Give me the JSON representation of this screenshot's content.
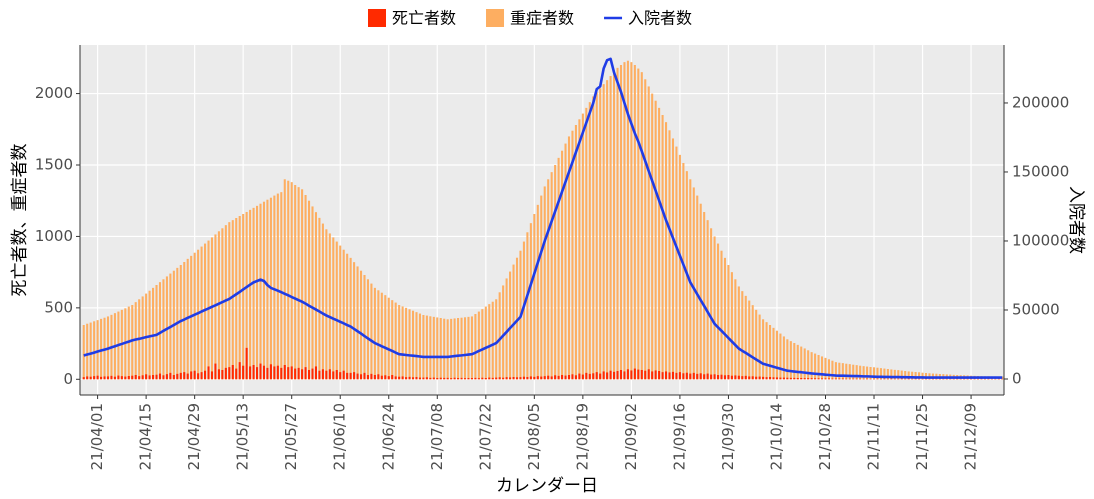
{
  "chart_data": {
    "type": "combo",
    "x_label": "カレンダー日",
    "y_label": "死亡者数、重症者数",
    "y2_label": "入院者数",
    "categories": [
      null,
      null,
      null,
      null,
      "21/04/01",
      null,
      null,
      null,
      null,
      null,
      null,
      null,
      null,
      null,
      null,
      null,
      null,
      null,
      "21/04/15",
      null,
      null,
      null,
      null,
      null,
      null,
      null,
      null,
      null,
      null,
      null,
      null,
      null,
      "21/04/29",
      null,
      null,
      null,
      null,
      null,
      null,
      null,
      null,
      null,
      null,
      null,
      null,
      null,
      "21/05/13",
      null,
      null,
      null,
      null,
      null,
      null,
      null,
      null,
      null,
      null,
      null,
      null,
      null,
      "21/05/27",
      null,
      null,
      null,
      null,
      null,
      null,
      null,
      null,
      null,
      null,
      null,
      null,
      null,
      "21/06/10",
      null,
      null,
      null,
      null,
      null,
      null,
      null,
      null,
      null,
      null,
      null,
      null,
      null,
      "21/06/24",
      null,
      null,
      null,
      null,
      null,
      null,
      null,
      null,
      null,
      null,
      null,
      null,
      null,
      "21/07/08",
      null,
      null,
      null,
      null,
      null,
      null,
      null,
      null,
      null,
      null,
      null,
      null,
      null,
      "21/07/22",
      null,
      null,
      null,
      null,
      null,
      null,
      null,
      null,
      null,
      null,
      null,
      null,
      null,
      "21/08/05",
      null,
      null,
      null,
      null,
      null,
      null,
      null,
      null,
      null,
      null,
      null,
      null,
      null,
      "21/08/19",
      null,
      null,
      null,
      null,
      null,
      null,
      null,
      null,
      null,
      null,
      null,
      null,
      null,
      "21/09/02",
      null,
      null,
      null,
      null,
      null,
      null,
      null,
      null,
      null,
      null,
      null,
      null,
      null,
      "21/09/16",
      null,
      null,
      null,
      null,
      null,
      null,
      null,
      null,
      null,
      null,
      null,
      null,
      null,
      "21/09/30",
      null,
      null,
      null,
      null,
      null,
      null,
      null,
      null,
      null,
      null,
      null,
      null,
      null,
      "21/10/14",
      null,
      null,
      null,
      null,
      null,
      null,
      null,
      null,
      null,
      null,
      null,
      null,
      null,
      "21/10/28",
      null,
      null,
      null,
      null,
      null,
      null,
      null,
      null,
      null,
      null,
      null,
      null,
      null,
      "21/11/11",
      null,
      null,
      null,
      null,
      null,
      null,
      null,
      null,
      null,
      null,
      null,
      null,
      null,
      "21/11/25",
      null,
      null,
      null,
      null,
      null,
      null,
      null,
      null,
      null,
      null,
      null,
      null,
      null,
      "21/12/09",
      null,
      null,
      null,
      null,
      null,
      null,
      null,
      null,
      null
    ],
    "series": [
      {
        "name": "死亡者数",
        "type": "bar",
        "color": "#ff2a00",
        "values": [
          15,
          20,
          18,
          22,
          25,
          17,
          20,
          20,
          24,
          18,
          26,
          22,
          19,
          23,
          25,
          30,
          22,
          28,
          35,
          27,
          30,
          32,
          40,
          28,
          36,
          45,
          30,
          38,
          45,
          50,
          40,
          55,
          60,
          42,
          50,
          60,
          90,
          55,
          110,
          70,
          65,
          80,
          85,
          100,
          75,
          120,
          95,
          220,
          90,
          100,
          85,
          110,
          95,
          80,
          105,
          90,
          95,
          80,
          100,
          85,
          90,
          75,
          80,
          70,
          85,
          65,
          75,
          90,
          60,
          70,
          60,
          70,
          55,
          65,
          50,
          60,
          45,
          45,
          50,
          40,
          35,
          45,
          30,
          38,
          30,
          35,
          25,
          28,
          22,
          30,
          20,
          18,
          20,
          15,
          17,
          14,
          16,
          12,
          12,
          14,
          10,
          12,
          9,
          11,
          10,
          10,
          8,
          11,
          9,
          10,
          8,
          9,
          9,
          10,
          8,
          11,
          9,
          12,
          10,
          12,
          14,
          11,
          15,
          13,
          16,
          14,
          15,
          18,
          16,
          20,
          17,
          22,
          19,
          22,
          25,
          20,
          28,
          24,
          30,
          26,
          30,
          35,
          28,
          40,
          33,
          45,
          38,
          42,
          50,
          40,
          55,
          48,
          60,
          52,
          58,
          65,
          55,
          70,
          62,
          75,
          68,
          65,
          60,
          70,
          55,
          62,
          58,
          50,
          55,
          48,
          52,
          45,
          50,
          42,
          46,
          40,
          45,
          38,
          42,
          35,
          40,
          33,
          35,
          30,
          32,
          28,
          30,
          25,
          27,
          25,
          22,
          24,
          20,
          21,
          18,
          19,
          17,
          15,
          16,
          14,
          13,
          12,
          12,
          11,
          10,
          10,
          9,
          9,
          8,
          8,
          8,
          7,
          7,
          6,
          6,
          6,
          5,
          5,
          5,
          5,
          4,
          4,
          4,
          4,
          4,
          3,
          4,
          3,
          3,
          4,
          3,
          4,
          3,
          4,
          3,
          3,
          4,
          3,
          4,
          3,
          4,
          3,
          3,
          4,
          3,
          4,
          3,
          4,
          3,
          3,
          4,
          3,
          4,
          3,
          4,
          3,
          3,
          4,
          3,
          4,
          3,
          4,
          3,
          3,
          4,
          3
        ]
      },
      {
        "name": "重症者数",
        "type": "bar",
        "color": "#fdae61",
        "values": [
          380,
          389,
          397,
          406,
          414,
          423,
          431,
          440,
          451,
          463,
          474,
          486,
          497,
          509,
          520,
          540,
          560,
          580,
          600,
          620,
          640,
          660,
          680,
          700,
          720,
          740,
          760,
          780,
          800,
          821,
          843,
          864,
          886,
          907,
          929,
          950,
          971,
          993,
          1014,
          1036,
          1057,
          1079,
          1100,
          1114,
          1129,
          1143,
          1157,
          1171,
          1186,
          1200,
          1214,
          1229,
          1243,
          1257,
          1271,
          1286,
          1300,
          1310,
          1400,
          1390,
          1380,
          1360,
          1345,
          1330,
          1290,
          1250,
          1210,
          1170,
          1130,
          1090,
          1050,
          1021,
          993,
          964,
          936,
          907,
          879,
          850,
          820,
          790,
          760,
          730,
          700,
          670,
          640,
          623,
          606,
          589,
          571,
          554,
          537,
          520,
          510,
          500,
          490,
          480,
          470,
          460,
          450,
          446,
          441,
          437,
          433,
          429,
          424,
          420,
          423,
          426,
          429,
          431,
          434,
          437,
          440,
          457,
          474,
          491,
          509,
          526,
          543,
          560,
          609,
          657,
          706,
          754,
          803,
          851,
          900,
          964,
          1029,
          1093,
          1157,
          1221,
          1286,
          1350,
          1400,
          1450,
          1500,
          1550,
          1600,
          1650,
          1700,
          1740,
          1780,
          1820,
          1860,
          1900,
          1940,
          1980,
          2009,
          2037,
          2066,
          2094,
          2123,
          2151,
          2180,
          2200,
          2220,
          2230,
          2220,
          2200,
          2175,
          2150,
          2100,
          2050,
          2000,
          1950,
          1900,
          1850,
          1800,
          1743,
          1686,
          1629,
          1571,
          1514,
          1457,
          1400,
          1343,
          1286,
          1229,
          1171,
          1114,
          1057,
          1000,
          950,
          900,
          850,
          800,
          750,
          700,
          650,
          617,
          584,
          551,
          519,
          486,
          453,
          420,
          400,
          380,
          360,
          340,
          320,
          300,
          280,
          267,
          254,
          241,
          229,
          216,
          203,
          190,
          180,
          170,
          160,
          150,
          140,
          130,
          120,
          116,
          113,
          109,
          106,
          102,
          99,
          95,
          92,
          89,
          86,
          84,
          81,
          78,
          75,
          72,
          69,
          66,
          64,
          61,
          58,
          55,
          53,
          51,
          49,
          46,
          44,
          42,
          40,
          39,
          37,
          36,
          34,
          33,
          31,
          30,
          29,
          28,
          27,
          25,
          24,
          23,
          22,
          21,
          21,
          20,
          20,
          19,
          19
        ]
      },
      {
        "name": "入院者数",
        "type": "line",
        "axis": "y2",
        "color": "#1f3ce6",
        "values": [
          17000,
          17700,
          18400,
          19100,
          19900,
          20600,
          21300,
          22000,
          22900,
          23700,
          24600,
          25400,
          26300,
          27100,
          28000,
          28600,
          29100,
          29700,
          30300,
          30900,
          31400,
          32000,
          33400,
          34900,
          36300,
          37700,
          39100,
          40600,
          42000,
          43100,
          44300,
          45400,
          46600,
          47700,
          48900,
          50000,
          51100,
          52300,
          53400,
          54600,
          55700,
          56900,
          58000,
          59700,
          61400,
          63100,
          64900,
          66600,
          68300,
          70000,
          71000,
          72000,
          71000,
          68000,
          66000,
          65000,
          64000,
          62900,
          61700,
          60600,
          59400,
          58300,
          57100,
          56000,
          54600,
          53100,
          51700,
          50300,
          48900,
          47400,
          46000,
          44900,
          43700,
          42600,
          41400,
          40300,
          39100,
          38000,
          36300,
          34600,
          32900,
          31100,
          29400,
          27700,
          26000,
          24900,
          23700,
          22600,
          21400,
          20300,
          19100,
          18000,
          17700,
          17400,
          17100,
          16900,
          16600,
          16300,
          16000,
          16000,
          16000,
          16000,
          16000,
          16000,
          16000,
          16000,
          16300,
          16600,
          16900,
          17100,
          17400,
          17700,
          18000,
          19100,
          20300,
          21400,
          22600,
          23700,
          24900,
          26000,
          28700,
          31400,
          34100,
          36900,
          39600,
          42300,
          45000,
          52900,
          60700,
          68600,
          76400,
          84300,
          92100,
          100000,
          107100,
          114300,
          121400,
          128600,
          135700,
          142900,
          150000,
          157100,
          164300,
          171400,
          178600,
          185700,
          192900,
          200000,
          210000,
          212000,
          225000,
          231000,
          232000,
          222000,
          215000,
          208000,
          200000,
          192000,
          185000,
          178000,
          172000,
          165000,
          157900,
          150700,
          143600,
          136400,
          129300,
          122100,
          115000,
          108600,
          102100,
          95700,
          89300,
          82900,
          76400,
          70000,
          65700,
          61400,
          57100,
          52900,
          48600,
          44300,
          40000,
          37400,
          34900,
          32300,
          29700,
          27100,
          24600,
          22000,
          20400,
          18900,
          17300,
          15700,
          14100,
          12600,
          11000,
          10300,
          9600,
          8900,
          8100,
          7400,
          6700,
          6000,
          5700,
          5400,
          5100,
          4900,
          4600,
          4300,
          4000,
          3800,
          3600,
          3400,
          3100,
          2900,
          2700,
          2500,
          2400,
          2400,
          2300,
          2200,
          2100,
          2100,
          2000,
          1900,
          1900,
          1800,
          1700,
          1600,
          1600,
          1500,
          1500,
          1400,
          1400,
          1400,
          1300,
          1300,
          1200,
          1200,
          1100,
          1100,
          1100,
          1000,
          1000,
          1000,
          1000,
          1000,
          1000,
          1000,
          1000,
          1000,
          1000,
          1000,
          1000,
          1000,
          1000,
          1000,
          1000,
          1000,
          1000,
          1000,
          1000,
          1000,
          1000,
          1000
        ]
      }
    ],
    "ylim": [
      -110,
      2340
    ],
    "yticks": [
      0,
      500,
      1000,
      1500,
      2000
    ],
    "y2lim": [
      -11600,
      242000
    ],
    "y2ticks": [
      0,
      50000,
      100000,
      150000,
      200000
    ],
    "grid": true,
    "legend": "top"
  }
}
